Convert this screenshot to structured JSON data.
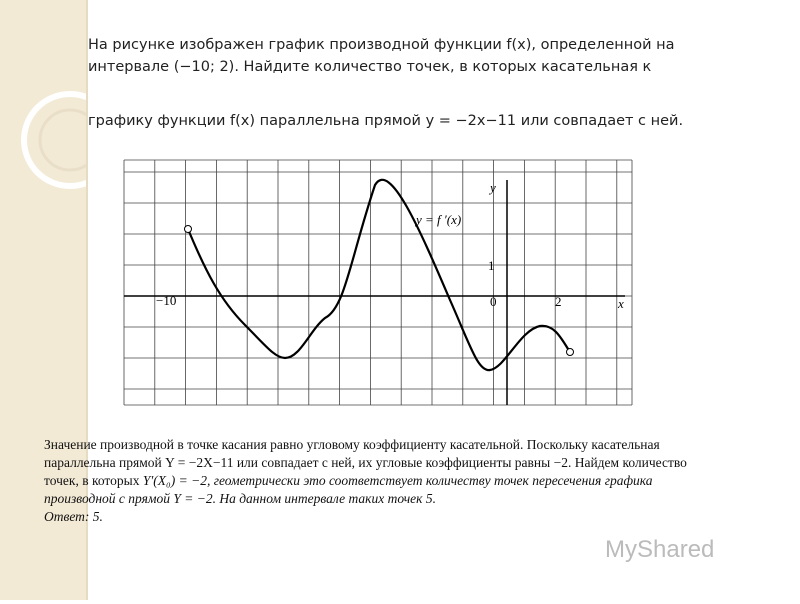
{
  "slide": {
    "question": {
      "line1": "На рисунке изображен график производной функции f(x), определенной на интервале (−10; 2). Найдите количество точек, в которых касательная к",
      "line2": "графику функции f(x) параллельна прямой y = −2x−11 или совпадает с ней."
    },
    "figure": {
      "x_axis": "x",
      "y_axis": "y",
      "function_label": "y = f ′(x)",
      "label_minus10": "−10",
      "label_zero": "0",
      "label_two": "2",
      "label_one": "1"
    },
    "solution": {
      "text1": "Значение производной в точке касания равно угловому коэффициенту касательной. Поскольку касательная параллельна прямой Y = −2X−11 или совпадает с ней, их угловые коэффициенты равны −2. Найдем количество точек, в которых",
      "text2": "Y′(X₀) = −2, геометрически это соответствует количеству точек пересечения графика производной с прямой Y = −2. На данном интервале таких точек 5.",
      "answer": "Ответ: 5."
    },
    "watermark": "MyShared"
  }
}
